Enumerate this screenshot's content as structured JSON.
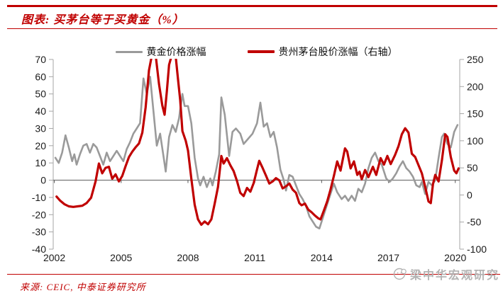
{
  "header": {
    "title": "图表: 买茅台等于买黄金（%）"
  },
  "footer": {
    "source": "来源: CEIC, 中泰证券研究所",
    "watermark": "梁中华宏观研究"
  },
  "colors": {
    "accent_red": "#C00000",
    "gold_line": "#9a9a9a",
    "moutai_line": "#C00000",
    "zero_axis": "#808080",
    "spine": "#a6a6a6",
    "tick_dark": "#595959",
    "axis_text": "#1a1a1a",
    "watermark_gray": "#b3b3b3"
  },
  "chart_data": {
    "type": "line",
    "title": "买茅台等于买黄金（%）",
    "legend_position": "top-center",
    "grid": false,
    "legend": [
      {
        "label": "黄金价格涨幅",
        "color": "#9a9a9a",
        "axis": "left"
      },
      {
        "label": "贵州茅台股价涨幅（右轴）",
        "color": "#C00000",
        "axis": "right"
      }
    ],
    "x_ticks": [
      2002,
      2005,
      2008,
      2011,
      2014,
      2017,
      2020
    ],
    "x_range": [
      2001.95,
      2020.2
    ],
    "left_axis": {
      "min": -40,
      "max": 70,
      "step": 10
    },
    "right_axis": {
      "min": -100,
      "max": 250,
      "step": 50
    },
    "series": [
      {
        "name": "黄金价格涨幅",
        "axis": "left",
        "color": "#9a9a9a",
        "width": 2.6,
        "points": [
          [
            2002.05,
            13
          ],
          [
            2002.2,
            10
          ],
          [
            2002.35,
            16
          ],
          [
            2002.5,
            26
          ],
          [
            2002.65,
            19
          ],
          [
            2002.8,
            11
          ],
          [
            2002.9,
            15
          ],
          [
            2003.0,
            9
          ],
          [
            2003.15,
            15
          ],
          [
            2003.3,
            20
          ],
          [
            2003.45,
            21
          ],
          [
            2003.6,
            16
          ],
          [
            2003.75,
            21
          ],
          [
            2003.9,
            19
          ],
          [
            2004.05,
            14
          ],
          [
            2004.2,
            9
          ],
          [
            2004.35,
            16
          ],
          [
            2004.5,
            11
          ],
          [
            2004.65,
            14
          ],
          [
            2004.8,
            17
          ],
          [
            2004.95,
            14
          ],
          [
            2005.1,
            11
          ],
          [
            2005.25,
            18
          ],
          [
            2005.4,
            22
          ],
          [
            2005.55,
            27
          ],
          [
            2005.7,
            30
          ],
          [
            2005.85,
            33
          ],
          [
            2006.0,
            59
          ],
          [
            2006.15,
            50
          ],
          [
            2006.3,
            60
          ],
          [
            2006.45,
            40
          ],
          [
            2006.6,
            20
          ],
          [
            2006.75,
            27
          ],
          [
            2006.9,
            14
          ],
          [
            2007.0,
            5
          ],
          [
            2007.15,
            25
          ],
          [
            2007.3,
            32
          ],
          [
            2007.45,
            28
          ],
          [
            2007.6,
            36
          ],
          [
            2007.75,
            50
          ],
          [
            2007.85,
            43
          ],
          [
            2008.0,
            43
          ],
          [
            2008.15,
            33
          ],
          [
            2008.3,
            13
          ],
          [
            2008.45,
            1
          ],
          [
            2008.55,
            -3
          ],
          [
            2008.7,
            2
          ],
          [
            2008.85,
            -4
          ],
          [
            2009.0,
            1
          ],
          [
            2009.1,
            -3
          ],
          [
            2009.25,
            5
          ],
          [
            2009.4,
            15
          ],
          [
            2009.5,
            48
          ],
          [
            2009.65,
            38
          ],
          [
            2009.85,
            14
          ],
          [
            2010.0,
            28
          ],
          [
            2010.15,
            30
          ],
          [
            2010.35,
            27
          ],
          [
            2010.5,
            21
          ],
          [
            2010.7,
            24
          ],
          [
            2010.9,
            27
          ],
          [
            2011.1,
            33
          ],
          [
            2011.25,
            45
          ],
          [
            2011.4,
            31
          ],
          [
            2011.55,
            33
          ],
          [
            2011.7,
            25
          ],
          [
            2011.85,
            28
          ],
          [
            2012.0,
            19
          ],
          [
            2012.15,
            6
          ],
          [
            2012.3,
            0
          ],
          [
            2012.4,
            -6
          ],
          [
            2012.55,
            3
          ],
          [
            2012.7,
            2
          ],
          [
            2012.85,
            -3
          ],
          [
            2013.0,
            -8
          ],
          [
            2013.15,
            -11
          ],
          [
            2013.3,
            -15
          ],
          [
            2013.45,
            -21
          ],
          [
            2013.6,
            -24
          ],
          [
            2013.75,
            -27
          ],
          [
            2013.9,
            -28
          ],
          [
            2014.05,
            -22
          ],
          [
            2014.2,
            -16
          ],
          [
            2014.4,
            -8
          ],
          [
            2014.55,
            -2
          ],
          [
            2014.7,
            -7
          ],
          [
            2014.9,
            -11
          ],
          [
            2015.05,
            -9
          ],
          [
            2015.2,
            -12
          ],
          [
            2015.35,
            -9
          ],
          [
            2015.5,
            -12
          ],
          [
            2015.65,
            -5
          ],
          [
            2015.8,
            -7
          ],
          [
            2015.95,
            -2
          ],
          [
            2016.1,
            7
          ],
          [
            2016.25,
            13
          ],
          [
            2016.4,
            16
          ],
          [
            2016.55,
            11
          ],
          [
            2016.7,
            9
          ],
          [
            2016.9,
            1
          ],
          [
            2017.05,
            -1
          ],
          [
            2017.2,
            1
          ],
          [
            2017.35,
            4
          ],
          [
            2017.5,
            8
          ],
          [
            2017.65,
            11
          ],
          [
            2017.8,
            7
          ],
          [
            2017.95,
            5
          ],
          [
            2018.1,
            2
          ],
          [
            2018.25,
            -3
          ],
          [
            2018.4,
            -4
          ],
          [
            2018.5,
            -1
          ],
          [
            2018.65,
            -8
          ],
          [
            2018.8,
            -1
          ],
          [
            2018.95,
            -3
          ],
          [
            2019.1,
            0
          ],
          [
            2019.25,
            13
          ],
          [
            2019.4,
            25
          ],
          [
            2019.5,
            27
          ],
          [
            2019.65,
            21
          ],
          [
            2019.8,
            19
          ],
          [
            2019.95,
            28
          ],
          [
            2020.1,
            32
          ]
        ]
      },
      {
        "name": "贵州茅台股价涨幅",
        "axis": "right",
        "color": "#C00000",
        "width": 3.2,
        "points": [
          [
            2002.1,
            -3
          ],
          [
            2002.25,
            -10
          ],
          [
            2002.45,
            -17
          ],
          [
            2002.65,
            -21
          ],
          [
            2002.85,
            -22
          ],
          [
            2003.05,
            -21
          ],
          [
            2003.25,
            -20
          ],
          [
            2003.45,
            -15
          ],
          [
            2003.65,
            -5
          ],
          [
            2003.85,
            25
          ],
          [
            2004.0,
            58
          ],
          [
            2004.15,
            40
          ],
          [
            2004.3,
            50
          ],
          [
            2004.45,
            52
          ],
          [
            2004.6,
            30
          ],
          [
            2004.75,
            38
          ],
          [
            2004.9,
            25
          ],
          [
            2005.05,
            35
          ],
          [
            2005.2,
            53
          ],
          [
            2005.35,
            70
          ],
          [
            2005.5,
            80
          ],
          [
            2005.65,
            88
          ],
          [
            2005.8,
            95
          ],
          [
            2005.95,
            115
          ],
          [
            2006.1,
            162
          ],
          [
            2006.25,
            230
          ],
          [
            2006.4,
            262
          ],
          [
            2006.55,
            258
          ],
          [
            2006.7,
            205
          ],
          [
            2006.85,
            165
          ],
          [
            2006.95,
            148
          ],
          [
            2007.05,
            190
          ],
          [
            2007.15,
            240
          ],
          [
            2007.3,
            262
          ],
          [
            2007.45,
            255
          ],
          [
            2007.55,
            215
          ],
          [
            2007.65,
            175
          ],
          [
            2007.75,
            118
          ],
          [
            2007.9,
            100
          ],
          [
            2008.0,
            82
          ],
          [
            2008.15,
            30
          ],
          [
            2008.3,
            -18
          ],
          [
            2008.45,
            -45
          ],
          [
            2008.6,
            -55
          ],
          [
            2008.75,
            -49
          ],
          [
            2008.9,
            -54
          ],
          [
            2009.05,
            -45
          ],
          [
            2009.2,
            -16
          ],
          [
            2009.35,
            15
          ],
          [
            2009.5,
            72
          ],
          [
            2009.6,
            58
          ],
          [
            2009.75,
            68
          ],
          [
            2009.9,
            55
          ],
          [
            2010.05,
            44
          ],
          [
            2010.2,
            26
          ],
          [
            2010.35,
            4
          ],
          [
            2010.5,
            -2
          ],
          [
            2010.65,
            13
          ],
          [
            2010.8,
            6
          ],
          [
            2010.95,
            22
          ],
          [
            2011.1,
            47
          ],
          [
            2011.2,
            63
          ],
          [
            2011.35,
            50
          ],
          [
            2011.5,
            36
          ],
          [
            2011.65,
            21
          ],
          [
            2011.8,
            25
          ],
          [
            2011.95,
            31
          ],
          [
            2012.1,
            27
          ],
          [
            2012.25,
            12
          ],
          [
            2012.4,
            16
          ],
          [
            2012.55,
            21
          ],
          [
            2012.7,
            10
          ],
          [
            2012.85,
            4
          ],
          [
            2013.0,
            -15
          ],
          [
            2013.1,
            -19
          ],
          [
            2013.25,
            -16
          ],
          [
            2013.4,
            -27
          ],
          [
            2013.55,
            -32
          ],
          [
            2013.7,
            -38
          ],
          [
            2013.85,
            -43
          ],
          [
            2013.95,
            -45
          ],
          [
            2014.1,
            -29
          ],
          [
            2014.25,
            -12
          ],
          [
            2014.4,
            10
          ],
          [
            2014.55,
            35
          ],
          [
            2014.7,
            62
          ],
          [
            2014.85,
            45
          ],
          [
            2015.05,
            86
          ],
          [
            2015.15,
            80
          ],
          [
            2015.3,
            49
          ],
          [
            2015.45,
            62
          ],
          [
            2015.6,
            37
          ],
          [
            2015.7,
            43
          ],
          [
            2015.8,
            29
          ],
          [
            2015.95,
            46
          ],
          [
            2016.1,
            33
          ],
          [
            2016.3,
            52
          ],
          [
            2016.45,
            37
          ],
          [
            2016.65,
            68
          ],
          [
            2016.8,
            56
          ],
          [
            2016.95,
            72
          ],
          [
            2017.1,
            57
          ],
          [
            2017.3,
            74
          ],
          [
            2017.45,
            90
          ],
          [
            2017.6,
            112
          ],
          [
            2017.75,
            123
          ],
          [
            2017.9,
            115
          ],
          [
            2018.05,
            76
          ],
          [
            2018.2,
            70
          ],
          [
            2018.35,
            55
          ],
          [
            2018.5,
            40
          ],
          [
            2018.65,
            15
          ],
          [
            2018.8,
            -12
          ],
          [
            2018.9,
            -15
          ],
          [
            2019.0,
            20
          ],
          [
            2019.1,
            37
          ],
          [
            2019.25,
            25
          ],
          [
            2019.4,
            64
          ],
          [
            2019.55,
            112
          ],
          [
            2019.65,
            107
          ],
          [
            2019.8,
            70
          ],
          [
            2019.95,
            45
          ],
          [
            2020.05,
            40
          ],
          [
            2020.15,
            49
          ]
        ]
      }
    ]
  }
}
